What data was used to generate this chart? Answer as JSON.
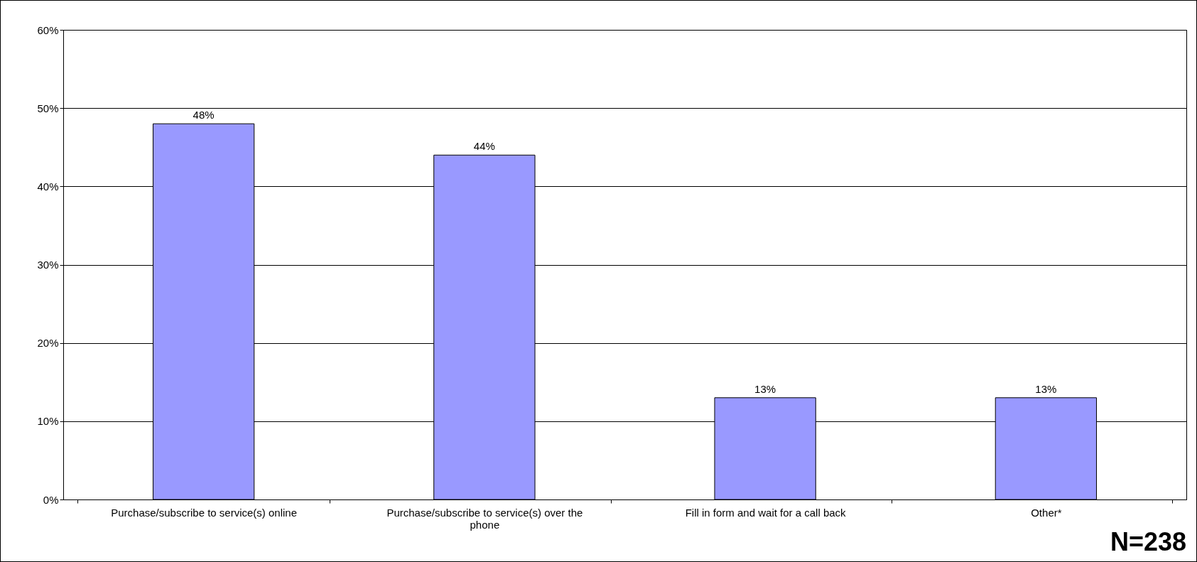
{
  "chart_data": {
    "type": "bar",
    "categories": [
      "Purchase/subscribe to service(s) online",
      "Purchase/subscribe to service(s) over the phone",
      "Fill in form and wait for a call back",
      "Other*"
    ],
    "values": [
      48,
      44,
      13,
      13
    ],
    "value_labels": [
      "48%",
      "44%",
      "13%",
      "13%"
    ],
    "color": "#9999ff",
    "ylim": [
      0,
      60
    ],
    "yticks": [
      {
        "value": 0,
        "label": "0%"
      },
      {
        "value": 10,
        "label": "10%"
      },
      {
        "value": 20,
        "label": "20%"
      },
      {
        "value": 30,
        "label": "30%"
      },
      {
        "value": 40,
        "label": "40%"
      },
      {
        "value": 50,
        "label": "50%"
      },
      {
        "value": 60,
        "label": "60%"
      }
    ],
    "grid": "y",
    "annotations": [
      "N=238"
    ]
  }
}
